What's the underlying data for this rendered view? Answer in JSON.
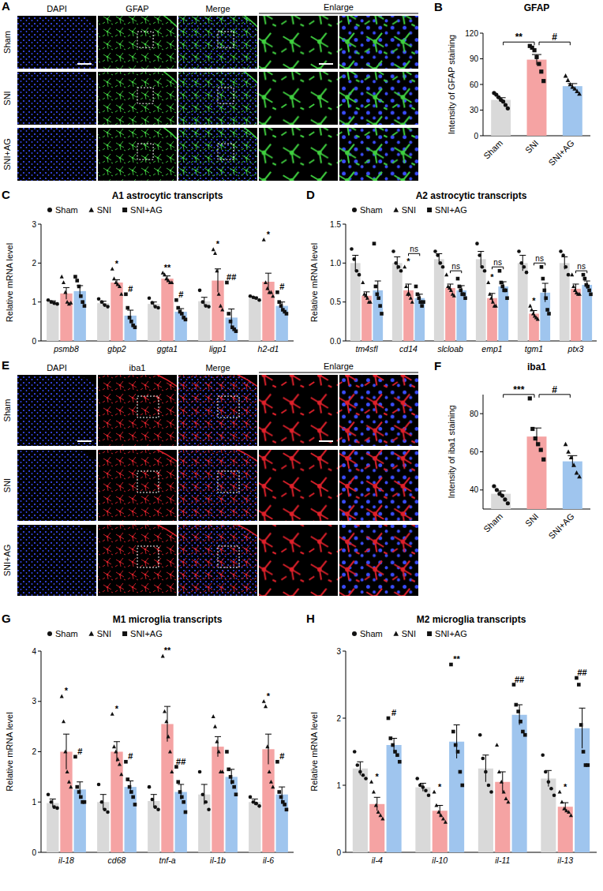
{
  "image_panels": [
    {
      "panel": "A",
      "columns": [
        "DAPI",
        "GFAP",
        "Merge"
      ],
      "enlarge": "Enlarge",
      "rows": [
        "Sham",
        "SNI",
        "SNI+AG"
      ],
      "color": "#3fd13f"
    },
    {
      "panel": "E",
      "columns": [
        "DAPI",
        "iba1",
        "Merge"
      ],
      "enlarge": "Enlarge",
      "rows": [
        "Sham",
        "SNI",
        "SNI+AG"
      ],
      "color": "#e0202a"
    }
  ],
  "chart_data": [
    {
      "panel": "B",
      "type": "bar",
      "title": "GFAP",
      "y_label": "Intensity of GFAP staining",
      "categories": [
        "Sham",
        "SNI",
        "SNI+AG"
      ],
      "values": [
        42,
        89,
        58
      ],
      "errors": [
        2.5,
        6,
        3
      ],
      "points": [
        [
          50,
          48,
          45,
          42,
          40,
          36,
          32
        ],
        [
          105,
          103,
          100,
          92,
          84,
          75,
          64
        ],
        [
          70,
          65,
          60,
          57,
          55,
          52,
          49
        ]
      ],
      "colors": [
        "#d9d9d9",
        "#f5a3a3",
        "#9fc5ee"
      ],
      "markers": [
        "circle",
        "square",
        "triangle"
      ],
      "ylim": [
        0,
        120
      ],
      "yticks": [
        0,
        30,
        60,
        90,
        120
      ],
      "comparisons": [
        {
          "text": "**",
          "pair": [
            "Sham",
            "SNI"
          ]
        },
        {
          "text": "#",
          "pair": [
            "SNI",
            "SNI+AG"
          ]
        }
      ]
    },
    {
      "panel": "C",
      "type": "bar",
      "title": "A1 astrocytic transcripts",
      "y_label": "Relative mRNA level",
      "categories": [
        "psmb8",
        "gbp2",
        "ggta1",
        "ligp1",
        "h2-d1"
      ],
      "ylim": [
        0,
        3
      ],
      "yticks": [
        0,
        1,
        2,
        3
      ],
      "legend": "top",
      "series": [
        {
          "name": "Sham",
          "color": "#d9d9d9",
          "marker": "circle",
          "values": [
            1.0,
            0.97,
            0.95,
            1.02,
            1.1
          ],
          "errors": [
            0.03,
            0.05,
            0.05,
            0.1,
            0.03
          ],
          "points": [
            [
              1.05,
              1.0,
              0.97,
              0.95
            ],
            [
              1.08,
              1.0,
              0.92,
              0.88
            ],
            [
              1.1,
              0.98,
              0.88,
              0.85
            ],
            [
              1.3,
              1.0,
              0.9,
              0.88
            ],
            [
              1.15,
              1.12,
              1.1,
              1.05
            ]
          ],
          "significance": [
            null,
            null,
            null,
            null,
            null
          ]
        },
        {
          "name": "SNI",
          "color": "#f5a3a3",
          "marker": "triangle",
          "values": [
            1.22,
            1.5,
            1.6,
            1.55,
            1.52
          ],
          "errors": [
            0.15,
            0.07,
            0.07,
            0.3,
            0.22
          ],
          "points": [
            [
              1.65,
              1.5,
              1.25,
              1.0,
              0.95,
              0.98
            ],
            [
              1.85,
              1.6,
              1.5,
              1.45,
              1.4,
              1.2
            ],
            [
              1.75,
              1.7,
              1.6,
              1.55,
              1.5,
              1.5
            ],
            [
              2.35,
              2.25,
              1.8,
              1.2,
              0.9,
              0.8
            ],
            [
              2.6,
              1.5,
              1.35,
              1.25,
              1.25,
              1.15
            ]
          ],
          "significance": [
            null,
            "*",
            "**",
            "*",
            "*"
          ]
        },
        {
          "name": "SNI+AG",
          "color": "#9fc5ee",
          "marker": "square",
          "values": [
            1.28,
            0.65,
            0.75,
            0.6,
            0.9
          ],
          "errors": [
            0.14,
            0.14,
            0.08,
            0.22,
            0.1
          ],
          "points": [
            [
              1.65,
              1.55,
              1.4,
              1.15,
              1.0,
              0.9
            ],
            [
              1.2,
              0.85,
              0.6,
              0.5,
              0.4,
              0.35
            ],
            [
              1.05,
              0.85,
              0.75,
              0.7,
              0.6,
              0.55
            ],
            [
              1.5,
              0.7,
              0.5,
              0.35,
              0.3,
              0.25
            ],
            [
              1.25,
              1.0,
              0.9,
              0.8,
              0.75,
              0.7
            ]
          ],
          "significance": [
            null,
            "#",
            "#",
            "##",
            "#"
          ]
        }
      ]
    },
    {
      "panel": "D",
      "type": "bar",
      "title": "A2 astrocytic transcripts",
      "y_label": "Relative mRNA level",
      "categories": [
        "tm4sfl",
        "cd14",
        "slcloab",
        "emp1",
        "tgm1",
        "ptx3"
      ],
      "ylim": [
        0,
        1.5
      ],
      "yticks": [
        {
          "value": 0,
          "label": "0.0"
        },
        0.5,
        {
          "value": 1,
          "label": "1.0"
        },
        1.5
      ],
      "legend": "top",
      "series": [
        {
          "name": "Sham",
          "color": "#d9d9d9",
          "marker": "circle",
          "values": [
            1.0,
            1.0,
            1.05,
            1.05,
            1.0,
            1.0
          ],
          "errors": [
            0.1,
            0.08,
            0.07,
            0.1,
            0.1,
            0.08
          ],
          "points": [
            [
              1.18,
              1.05,
              0.9,
              0.85
            ],
            [
              1.15,
              1.0,
              0.95,
              0.9
            ],
            [
              1.15,
              1.1,
              1.0,
              0.95
            ],
            [
              1.25,
              1.1,
              0.95,
              0.9
            ],
            [
              1.15,
              1.0,
              0.95,
              0.88
            ],
            [
              1.15,
              1.1,
              0.95,
              0.85
            ]
          ],
          "significance": [
            null,
            null,
            null,
            null,
            null,
            null
          ]
        },
        {
          "name": "SNI",
          "color": "#f5a3a3",
          "marker": "triangle",
          "values": [
            0.58,
            0.65,
            0.68,
            0.55,
            0.35,
            0.67
          ],
          "errors": [
            0.05,
            0.08,
            0.05,
            0.06,
            0.04,
            0.06
          ],
          "points": [
            [
              0.75,
              0.6,
              0.58,
              0.55,
              0.5,
              0.5
            ],
            [
              0.95,
              0.7,
              0.6,
              0.6,
              0.55,
              0.5
            ],
            [
              0.85,
              0.7,
              0.68,
              0.65,
              0.6,
              0.58
            ],
            [
              0.75,
              0.6,
              0.55,
              0.5,
              0.45,
              0.45
            ],
            [
              0.45,
              0.4,
              0.35,
              0.32,
              0.3,
              0.28
            ],
            [
              0.85,
              0.7,
              0.65,
              0.62,
              0.6,
              0.6
            ]
          ],
          "significance": [
            null,
            "*",
            null,
            "*",
            "*",
            null
          ]
        },
        {
          "name": "SNI+AG",
          "color": "#9fc5ee",
          "marker": "square",
          "values": [
            0.65,
            0.55,
            0.65,
            0.7,
            0.62,
            0.72
          ],
          "errors": [
            0.12,
            0.05,
            0.06,
            0.06,
            0.12,
            0.05
          ],
          "points": [
            [
              1.25,
              0.7,
              0.6,
              0.55,
              0.45,
              0.35
            ],
            [
              0.7,
              0.6,
              0.55,
              0.5,
              0.45,
              0.5
            ],
            [
              0.8,
              0.7,
              0.65,
              0.6,
              0.6,
              0.55
            ],
            [
              0.9,
              0.75,
              0.7,
              0.65,
              0.65,
              0.55
            ],
            [
              0.95,
              0.8,
              0.65,
              0.55,
              0.4,
              0.35
            ],
            [
              0.85,
              0.8,
              0.72,
              0.7,
              0.65,
              0.6
            ]
          ],
          "significance": [
            null,
            null,
            null,
            null,
            null,
            null
          ]
        }
      ],
      "brackets": {
        "pair": [
          "SNI",
          "SNI+AG"
        ],
        "labels": [
          null,
          "ns",
          "ns",
          "ns",
          "ns",
          "ns"
        ]
      }
    },
    {
      "panel": "F",
      "type": "bar",
      "title": "iba1",
      "y_label": "Intensity of iba1 staining",
      "categories": [
        "Sham",
        "SNI",
        "SNI+AG"
      ],
      "values": [
        38,
        68,
        55
      ],
      "errors": [
        1.5,
        4.5,
        3
      ],
      "points": [
        [
          42,
          40,
          38,
          37,
          35,
          33
        ],
        [
          88,
          72,
          67,
          64,
          61,
          56
        ],
        [
          64,
          60,
          57,
          53,
          49,
          47
        ]
      ],
      "colors": [
        "#d9d9d9",
        "#f5a3a3",
        "#9fc5ee"
      ],
      "markers": [
        "circle",
        "square",
        "triangle"
      ],
      "ylim": [
        30,
        90
      ],
      "yticks": [
        40,
        60,
        80
      ],
      "comparisons": [
        {
          "text": "***",
          "pair": [
            "Sham",
            "SNI"
          ]
        },
        {
          "text": "#",
          "pair": [
            "SNI",
            "SNI+AG"
          ]
        }
      ]
    },
    {
      "panel": "G",
      "type": "bar",
      "title": "M1 microglia transcripts",
      "y_label": "Relative mRNA level",
      "categories": [
        "il-18",
        "cd68",
        "tnf-a",
        "il-1b",
        "il-6"
      ],
      "ylim": [
        0,
        4
      ],
      "yticks": [
        0,
        1,
        2,
        3,
        4
      ],
      "legend": "top",
      "series": [
        {
          "name": "Sham",
          "color": "#d9d9d9",
          "marker": "circle",
          "values": [
            0.98,
            1.0,
            1.02,
            1.15,
            1.0
          ],
          "errors": [
            0.08,
            0.15,
            0.13,
            0.2,
            0.06
          ],
          "points": [
            [
              1.15,
              1.0,
              0.9,
              0.88
            ],
            [
              1.35,
              1.0,
              0.85,
              0.8
            ],
            [
              1.3,
              1.05,
              0.9,
              0.85
            ],
            [
              1.6,
              1.15,
              1.0,
              0.85
            ],
            [
              1.1,
              1.0,
              0.97,
              0.92
            ]
          ],
          "significance": [
            null,
            null,
            null,
            null,
            null
          ]
        },
        {
          "name": "SNI",
          "color": "#f5a3a3",
          "marker": "triangle",
          "values": [
            2.0,
            2.0,
            2.55,
            2.1,
            2.05
          ],
          "errors": [
            0.35,
            0.2,
            0.35,
            0.2,
            0.3
          ],
          "points": [
            [
              3.1,
              2.6,
              2.0,
              1.6,
              1.4,
              1.3
            ],
            [
              2.75,
              2.1,
              2.0,
              1.85,
              1.75,
              1.55
            ],
            [
              3.9,
              2.8,
              2.6,
              2.3,
              2.0,
              1.6
            ],
            [
              2.7,
              2.5,
              2.2,
              2.0,
              1.6,
              1.6
            ],
            [
              3.0,
              2.9,
              2.1,
              1.6,
              1.4,
              1.3
            ]
          ],
          "significance": [
            "*",
            "*",
            "**",
            null,
            "*"
          ]
        },
        {
          "name": "SNI+AG",
          "color": "#9fc5ee",
          "marker": "square",
          "values": [
            1.25,
            1.3,
            1.2,
            1.5,
            1.15
          ],
          "errors": [
            0.15,
            0.12,
            0.15,
            0.15,
            0.15
          ],
          "points": [
            [
              1.9,
              1.3,
              1.2,
              1.1,
              1.0,
              1.0
            ],
            [
              1.8,
              1.45,
              1.3,
              1.2,
              1.1,
              0.95
            ],
            [
              1.7,
              1.4,
              1.2,
              1.1,
              1.0,
              0.8
            ],
            [
              2.0,
              1.65,
              1.5,
              1.4,
              1.3,
              1.15
            ],
            [
              1.8,
              1.2,
              1.1,
              1.0,
              0.95,
              0.85
            ]
          ],
          "significance": [
            "#",
            "#",
            "##",
            null,
            "#"
          ]
        }
      ]
    },
    {
      "panel": "H",
      "type": "bar",
      "title": "M2 microglia transcripts",
      "y_label": "Relative mRNA level",
      "categories": [
        "il-4",
        "il-10",
        "il-11",
        "il-13"
      ],
      "ylim": [
        0,
        3
      ],
      "yticks": [
        0,
        1,
        2,
        3
      ],
      "legend": "top",
      "series": [
        {
          "name": "Sham",
          "color": "#d9d9d9",
          "marker": "circle",
          "values": [
            1.25,
            0.97,
            1.25,
            1.1
          ],
          "errors": [
            0.1,
            0.06,
            0.2,
            0.12
          ],
          "points": [
            [
              1.5,
              1.3,
              1.2,
              1.15,
              1.1
            ],
            [
              1.1,
              1.0,
              0.97,
              0.92,
              0.85
            ],
            [
              1.75,
              1.4,
              1.2,
              1.0,
              0.9
            ],
            [
              1.45,
              1.2,
              1.05,
              0.95,
              0.85
            ]
          ],
          "significance": [
            null,
            null,
            null,
            null
          ]
        },
        {
          "name": "SNI",
          "color": "#f5a3a3",
          "marker": "triangle",
          "values": [
            0.72,
            0.62,
            1.05,
            0.68
          ],
          "errors": [
            0.1,
            0.08,
            0.15,
            0.06
          ],
          "points": [
            [
              1.05,
              0.9,
              0.7,
              0.6,
              0.55,
              0.5
            ],
            [
              0.9,
              0.7,
              0.6,
              0.55,
              0.5,
              0.45
            ],
            [
              1.6,
              1.2,
              1.05,
              0.9,
              0.8,
              0.75
            ],
            [
              0.9,
              0.75,
              0.65,
              0.62,
              0.6,
              0.55
            ]
          ],
          "significance": [
            "*",
            "*",
            null,
            "*"
          ]
        },
        {
          "name": "SNI+AG",
          "color": "#9fc5ee",
          "marker": "square",
          "values": [
            1.6,
            1.65,
            2.05,
            1.85
          ],
          "errors": [
            0.1,
            0.25,
            0.15,
            0.3
          ],
          "points": [
            [
              2.0,
              1.7,
              1.6,
              1.5,
              1.45,
              1.35
            ],
            [
              2.8,
              1.8,
              1.6,
              1.5,
              1.2,
              1.0
            ],
            [
              2.5,
              2.2,
              2.1,
              1.95,
              1.8,
              1.75
            ],
            [
              2.6,
              2.5,
              1.9,
              1.5,
              1.3,
              1.3
            ]
          ],
          "significance": [
            "#",
            "**",
            "##",
            "##"
          ]
        }
      ]
    }
  ]
}
